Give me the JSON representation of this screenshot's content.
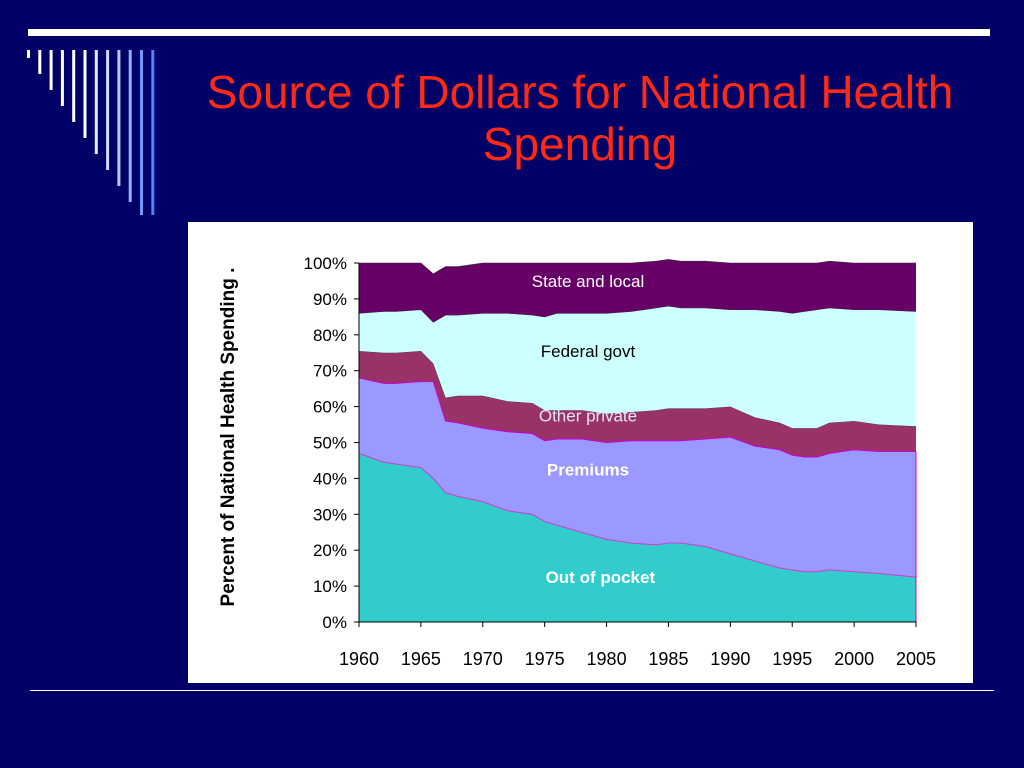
{
  "slide": {
    "title": "Source of Dollars for National Health Spending"
  },
  "chart_data": {
    "type": "area",
    "stacked": true,
    "title": "",
    "ylabel": "Percent of National Health Spending .",
    "xlabel": "",
    "x": [
      1960,
      1962,
      1963,
      1965,
      1966,
      1967,
      1968,
      1970,
      1972,
      1974,
      1975,
      1976,
      1978,
      1980,
      1982,
      1984,
      1985,
      1986,
      1988,
      1990,
      1992,
      1994,
      1995,
      1996,
      1997,
      1998,
      2000,
      2002,
      2005
    ],
    "xlim": [
      1960,
      2005
    ],
    "xticks": [
      "1960",
      "1965",
      "1970",
      "1975",
      "1980",
      "1985",
      "1990",
      "1995",
      "2000",
      "2005"
    ],
    "ylim": [
      0,
      100
    ],
    "yticks": [
      "0%",
      "10%",
      "20%",
      "30%",
      "40%",
      "50%",
      "60%",
      "70%",
      "80%",
      "90%",
      "100%"
    ],
    "series": [
      {
        "name": "Out of pocket",
        "color": "#33cccc",
        "edge": "#cc44cc",
        "label_color": "#ffffff",
        "values": [
          47,
          44.5,
          44,
          43,
          40,
          36,
          35,
          33.5,
          31,
          30,
          28,
          27,
          25,
          23,
          22,
          21.5,
          22,
          22,
          21,
          19,
          17,
          15,
          14.5,
          14,
          14,
          14.5,
          14,
          13.5,
          12.5
        ]
      },
      {
        "name": "Premiums",
        "color": "#9999ff",
        "edge": "#cc00cc",
        "label_color": "#ffffff",
        "values": [
          21,
          22,
          22.5,
          24,
          27,
          20,
          20.5,
          20.5,
          22,
          22.5,
          22.5,
          24,
          26,
          27,
          28.5,
          29,
          28.5,
          28.5,
          30,
          32.5,
          32,
          33,
          32,
          32,
          32,
          32.5,
          34,
          34,
          35
        ]
      },
      {
        "name": "Other private",
        "color": "#993366",
        "edge": "#993366",
        "label_color": "#e4e4f8",
        "values": [
          7.5,
          8.5,
          8.5,
          8.5,
          5,
          6.5,
          7.5,
          9,
          8.5,
          8.5,
          8.5,
          8,
          8,
          8,
          8,
          8.5,
          9,
          9,
          8.5,
          8.5,
          8,
          7.5,
          7.5,
          8,
          8,
          8.5,
          8,
          7.5,
          7
        ]
      },
      {
        "name": "Federal govt",
        "color": "#ccffff",
        "edge": "#ccffff",
        "label_color": "#000000",
        "values": [
          10.5,
          11.5,
          11.5,
          11.5,
          11.5,
          23,
          22.5,
          23,
          24.5,
          24.5,
          26,
          27,
          27,
          28,
          28,
          28.5,
          28.5,
          28,
          28,
          27,
          30,
          31,
          32,
          32.5,
          33,
          32,
          31,
          32,
          32
        ]
      },
      {
        "name": "State and local",
        "color": "#660066",
        "edge": "#660066",
        "label_color": "#ffffff",
        "values": [
          14,
          13.5,
          13.5,
          13,
          13.5,
          13.5,
          13.5,
          14,
          14,
          14.5,
          15,
          14,
          14,
          14,
          13.5,
          13,
          13,
          13,
          13,
          13,
          13,
          13.5,
          14,
          13.5,
          13,
          13,
          13,
          13,
          13.5
        ]
      }
    ],
    "series_labels": [
      {
        "text": "State and local",
        "x": 1978.5,
        "y": 95,
        "bold": false
      },
      {
        "text": "Federal govt",
        "x": 1978.5,
        "y": 75.5,
        "bold": false
      },
      {
        "text": "Other private",
        "x": 1978.5,
        "y": 57.5,
        "bold": false
      },
      {
        "text": "Premiums",
        "x": 1978.5,
        "y": 42.5,
        "bold": true
      },
      {
        "text": "Out of pocket",
        "x": 1979.5,
        "y": 12.5,
        "bold": true
      }
    ],
    "grid": false,
    "legend": "none"
  }
}
